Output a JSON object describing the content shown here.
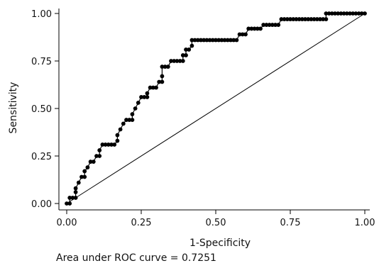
{
  "chart_data": {
    "type": "line",
    "xlabel": "1-Specificity",
    "ylabel": "Sensitivity",
    "xlim": [
      0,
      1
    ],
    "ylim": [
      0,
      1
    ],
    "x_ticks": [
      "0.00",
      "0.25",
      "0.50",
      "0.75",
      "1.00"
    ],
    "y_ticks": [
      "0.00",
      "0.25",
      "0.50",
      "0.75",
      "1.00"
    ],
    "grid": false,
    "legend": "none",
    "caption": "Area under ROC curve = 0.7251",
    "series": [
      {
        "kind": "roc-curve",
        "marker": "circle",
        "color": "#000000",
        "points": [
          [
            0.0,
            0.0
          ],
          [
            0.01,
            0.0
          ],
          [
            0.01,
            0.03
          ],
          [
            0.02,
            0.03
          ],
          [
            0.03,
            0.03
          ],
          [
            0.03,
            0.06
          ],
          [
            0.03,
            0.08
          ],
          [
            0.04,
            0.11
          ],
          [
            0.05,
            0.14
          ],
          [
            0.06,
            0.14
          ],
          [
            0.06,
            0.17
          ],
          [
            0.07,
            0.19
          ],
          [
            0.08,
            0.22
          ],
          [
            0.09,
            0.22
          ],
          [
            0.1,
            0.25
          ],
          [
            0.11,
            0.25
          ],
          [
            0.11,
            0.28
          ],
          [
            0.12,
            0.31
          ],
          [
            0.13,
            0.31
          ],
          [
            0.14,
            0.31
          ],
          [
            0.15,
            0.31
          ],
          [
            0.16,
            0.31
          ],
          [
            0.17,
            0.33
          ],
          [
            0.17,
            0.36
          ],
          [
            0.18,
            0.39
          ],
          [
            0.19,
            0.42
          ],
          [
            0.2,
            0.44
          ],
          [
            0.21,
            0.44
          ],
          [
            0.22,
            0.44
          ],
          [
            0.22,
            0.47
          ],
          [
            0.23,
            0.5
          ],
          [
            0.24,
            0.53
          ],
          [
            0.25,
            0.56
          ],
          [
            0.26,
            0.56
          ],
          [
            0.27,
            0.56
          ],
          [
            0.27,
            0.58
          ],
          [
            0.28,
            0.61
          ],
          [
            0.29,
            0.61
          ],
          [
            0.3,
            0.61
          ],
          [
            0.31,
            0.64
          ],
          [
            0.32,
            0.64
          ],
          [
            0.32,
            0.67
          ],
          [
            0.32,
            0.72
          ],
          [
            0.33,
            0.72
          ],
          [
            0.34,
            0.72
          ],
          [
            0.35,
            0.75
          ],
          [
            0.36,
            0.75
          ],
          [
            0.37,
            0.75
          ],
          [
            0.38,
            0.75
          ],
          [
            0.39,
            0.75
          ],
          [
            0.39,
            0.78
          ],
          [
            0.4,
            0.78
          ],
          [
            0.4,
            0.81
          ],
          [
            0.41,
            0.81
          ],
          [
            0.42,
            0.83
          ],
          [
            0.42,
            0.86
          ],
          [
            0.43,
            0.86
          ],
          [
            0.44,
            0.86
          ],
          [
            0.45,
            0.86
          ],
          [
            0.46,
            0.86
          ],
          [
            0.47,
            0.86
          ],
          [
            0.48,
            0.86
          ],
          [
            0.49,
            0.86
          ],
          [
            0.5,
            0.86
          ],
          [
            0.51,
            0.86
          ],
          [
            0.52,
            0.86
          ],
          [
            0.53,
            0.86
          ],
          [
            0.54,
            0.86
          ],
          [
            0.55,
            0.86
          ],
          [
            0.56,
            0.86
          ],
          [
            0.57,
            0.86
          ],
          [
            0.58,
            0.89
          ],
          [
            0.59,
            0.89
          ],
          [
            0.6,
            0.89
          ],
          [
            0.61,
            0.92
          ],
          [
            0.62,
            0.92
          ],
          [
            0.63,
            0.92
          ],
          [
            0.64,
            0.92
          ],
          [
            0.65,
            0.92
          ],
          [
            0.66,
            0.94
          ],
          [
            0.67,
            0.94
          ],
          [
            0.68,
            0.94
          ],
          [
            0.69,
            0.94
          ],
          [
            0.7,
            0.94
          ],
          [
            0.71,
            0.94
          ],
          [
            0.72,
            0.97
          ],
          [
            0.73,
            0.97
          ],
          [
            0.74,
            0.97
          ],
          [
            0.75,
            0.97
          ],
          [
            0.76,
            0.97
          ],
          [
            0.77,
            0.97
          ],
          [
            0.78,
            0.97
          ],
          [
            0.79,
            0.97
          ],
          [
            0.8,
            0.97
          ],
          [
            0.81,
            0.97
          ],
          [
            0.82,
            0.97
          ],
          [
            0.83,
            0.97
          ],
          [
            0.84,
            0.97
          ],
          [
            0.85,
            0.97
          ],
          [
            0.86,
            0.97
          ],
          [
            0.87,
            0.97
          ],
          [
            0.87,
            1.0
          ],
          [
            0.88,
            1.0
          ],
          [
            0.89,
            1.0
          ],
          [
            0.9,
            1.0
          ],
          [
            0.91,
            1.0
          ],
          [
            0.92,
            1.0
          ],
          [
            0.93,
            1.0
          ],
          [
            0.94,
            1.0
          ],
          [
            0.95,
            1.0
          ],
          [
            0.96,
            1.0
          ],
          [
            0.97,
            1.0
          ],
          [
            0.98,
            1.0
          ],
          [
            0.99,
            1.0
          ],
          [
            1.0,
            1.0
          ]
        ]
      },
      {
        "kind": "reference-diagonal",
        "marker": "none",
        "color": "#000000",
        "points": [
          [
            0,
            0
          ],
          [
            1,
            1
          ]
        ]
      }
    ]
  }
}
